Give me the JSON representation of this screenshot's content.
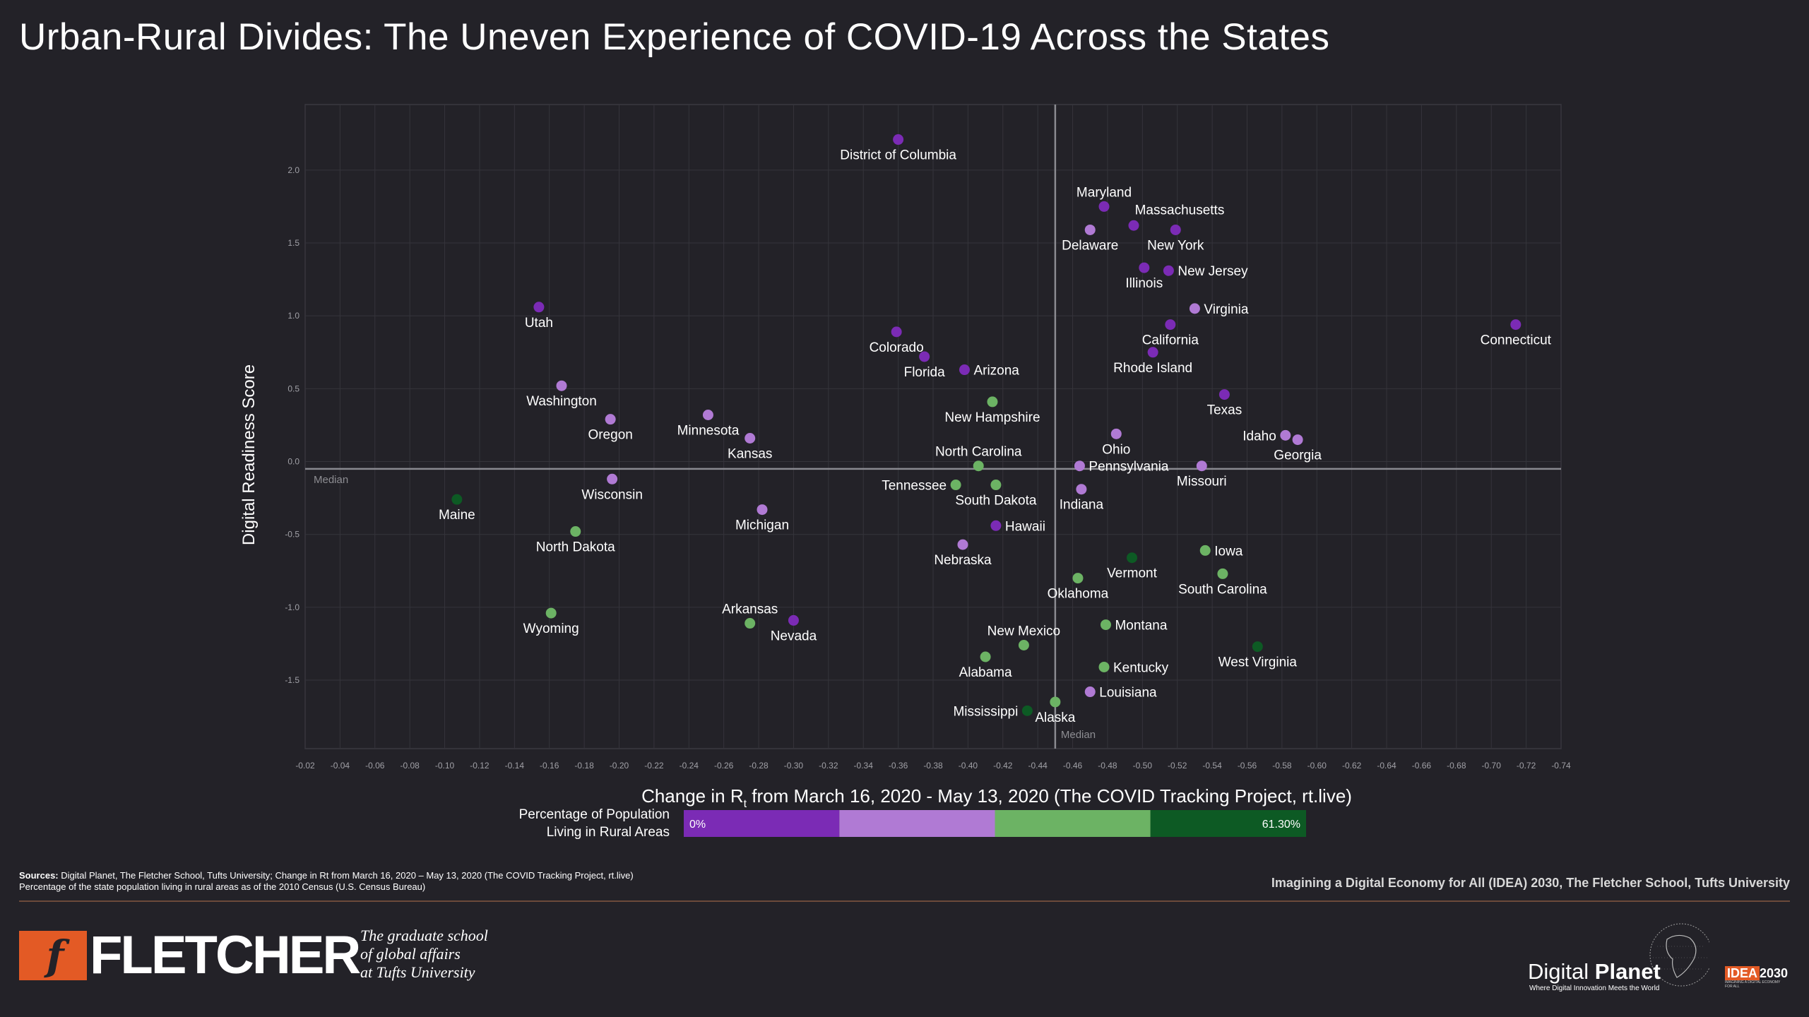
{
  "title": "Urban-Rural Divides: The Uneven Experience of COVID-19 Across the States",
  "colors": {
    "background": "#232228",
    "bin_0": "#7b2bb5",
    "bin_1": "#b07ad4",
    "bin_2": "#6cb364",
    "bin_3": "#0d5a24"
  },
  "chart_data": {
    "type": "scatter",
    "xlabel": "Change in Rt from March 16, 2020 - May 13, 2020 (The COVID Tracking Project, rt.live)",
    "xlabel_parts": {
      "pre": "Change in R",
      "sub": "t",
      "post": " from March 16, 2020 - May 13, 2020 (The COVID Tracking Project, rt.live)"
    },
    "ylabel": "Digital Readiness Score",
    "xlim": [
      -0.02,
      -0.74
    ],
    "ylim": [
      -1.97,
      2.45
    ],
    "x_ticks": [
      "-0.02",
      "-0.04",
      "-0.06",
      "-0.08",
      "-0.10",
      "-0.12",
      "-0.14",
      "-0.16",
      "-0.18",
      "-0.20",
      "-0.22",
      "-0.24",
      "-0.26",
      "-0.28",
      "-0.30",
      "-0.32",
      "-0.34",
      "-0.36",
      "-0.38",
      "-0.40",
      "-0.42",
      "-0.44",
      "-0.46",
      "-0.48",
      "-0.50",
      "-0.52",
      "-0.54",
      "-0.56",
      "-0.58",
      "-0.60",
      "-0.62",
      "-0.64",
      "-0.66",
      "-0.68",
      "-0.70",
      "-0.72",
      "-0.74"
    ],
    "y_ticks": [
      "2.0",
      "1.5",
      "1.0",
      "0.5",
      "0.0",
      "-0.5",
      "-1.0",
      "-1.5"
    ],
    "grid": true,
    "median_x": -0.45,
    "median_y": -0.05,
    "median_label": "Median",
    "legend": {
      "label_line1": "Percentage of Population",
      "label_line2": "Living in Rural Areas",
      "min_label": "0%",
      "max_label": "61.30%"
    },
    "points": [
      {
        "name": "District of Columbia",
        "x": -0.36,
        "y": 2.21,
        "bin": 0,
        "label_pos": "below"
      },
      {
        "name": "Maryland",
        "x": -0.478,
        "y": 1.75,
        "bin": 0,
        "label_pos": "above"
      },
      {
        "name": "Massachusetts",
        "x": -0.495,
        "y": 1.62,
        "bin": 0,
        "label_pos": "above-right"
      },
      {
        "name": "Delaware",
        "x": -0.47,
        "y": 1.59,
        "bin": 1,
        "label_pos": "below"
      },
      {
        "name": "New York",
        "x": -0.519,
        "y": 1.59,
        "bin": 0,
        "label_pos": "below"
      },
      {
        "name": "Illinois",
        "x": -0.501,
        "y": 1.33,
        "bin": 0,
        "label_pos": "below"
      },
      {
        "name": "New Jersey",
        "x": -0.515,
        "y": 1.31,
        "bin": 0,
        "label_pos": "right"
      },
      {
        "name": "Virginia",
        "x": -0.53,
        "y": 1.05,
        "bin": 1,
        "label_pos": "right"
      },
      {
        "name": "California",
        "x": -0.516,
        "y": 0.94,
        "bin": 0,
        "label_pos": "below"
      },
      {
        "name": "Connecticut",
        "x": -0.714,
        "y": 0.94,
        "bin": 0,
        "label_pos": "below"
      },
      {
        "name": "Utah",
        "x": -0.154,
        "y": 1.06,
        "bin": 0,
        "label_pos": "below"
      },
      {
        "name": "Colorado",
        "x": -0.359,
        "y": 0.89,
        "bin": 0,
        "label_pos": "below"
      },
      {
        "name": "Florida",
        "x": -0.375,
        "y": 0.72,
        "bin": 0,
        "label_pos": "below"
      },
      {
        "name": "Arizona",
        "x": -0.398,
        "y": 0.63,
        "bin": 0,
        "label_pos": "right"
      },
      {
        "name": "Rhode Island",
        "x": -0.506,
        "y": 0.75,
        "bin": 0,
        "label_pos": "below"
      },
      {
        "name": "Texas",
        "x": -0.547,
        "y": 0.46,
        "bin": 0,
        "label_pos": "below"
      },
      {
        "name": "Washington",
        "x": -0.167,
        "y": 0.52,
        "bin": 1,
        "label_pos": "below"
      },
      {
        "name": "Oregon",
        "x": -0.195,
        "y": 0.29,
        "bin": 1,
        "label_pos": "below"
      },
      {
        "name": "Minnesota",
        "x": -0.251,
        "y": 0.32,
        "bin": 1,
        "label_pos": "below"
      },
      {
        "name": "Kansas",
        "x": -0.275,
        "y": 0.16,
        "bin": 1,
        "label_pos": "below"
      },
      {
        "name": "New Hampshire",
        "x": -0.414,
        "y": 0.41,
        "bin": 2,
        "label_pos": "below"
      },
      {
        "name": "Ohio",
        "x": -0.485,
        "y": 0.19,
        "bin": 1,
        "label_pos": "below"
      },
      {
        "name": "Idaho",
        "x": -0.582,
        "y": 0.18,
        "bin": 1,
        "label_pos": "left"
      },
      {
        "name": "Georgia",
        "x": -0.589,
        "y": 0.15,
        "bin": 1,
        "label_pos": "below"
      },
      {
        "name": "North Carolina",
        "x": -0.406,
        "y": -0.03,
        "bin": 2,
        "label_pos": "above"
      },
      {
        "name": "Pennsylvania",
        "x": -0.464,
        "y": -0.03,
        "bin": 1,
        "label_pos": "right"
      },
      {
        "name": "Missouri",
        "x": -0.534,
        "y": -0.03,
        "bin": 1,
        "label_pos": "below"
      },
      {
        "name": "Tennessee",
        "x": -0.393,
        "y": -0.16,
        "bin": 2,
        "label_pos": "left"
      },
      {
        "name": "South Dakota",
        "x": -0.416,
        "y": -0.16,
        "bin": 2,
        "label_pos": "below"
      },
      {
        "name": "Indiana",
        "x": -0.465,
        "y": -0.19,
        "bin": 1,
        "label_pos": "below"
      },
      {
        "name": "Wisconsin",
        "x": -0.196,
        "y": -0.12,
        "bin": 1,
        "label_pos": "below"
      },
      {
        "name": "Maine",
        "x": -0.107,
        "y": -0.26,
        "bin": 3,
        "label_pos": "below"
      },
      {
        "name": "Michigan",
        "x": -0.282,
        "y": -0.33,
        "bin": 1,
        "label_pos": "below"
      },
      {
        "name": "Hawaii",
        "x": -0.416,
        "y": -0.44,
        "bin": 0,
        "label_pos": "right"
      },
      {
        "name": "North Dakota",
        "x": -0.175,
        "y": -0.48,
        "bin": 2,
        "label_pos": "below"
      },
      {
        "name": "Nebraska",
        "x": -0.397,
        "y": -0.57,
        "bin": 1,
        "label_pos": "below"
      },
      {
        "name": "Iowa",
        "x": -0.536,
        "y": -0.61,
        "bin": 2,
        "label_pos": "right"
      },
      {
        "name": "Vermont",
        "x": -0.494,
        "y": -0.66,
        "bin": 3,
        "label_pos": "below"
      },
      {
        "name": "South Carolina",
        "x": -0.546,
        "y": -0.77,
        "bin": 2,
        "label_pos": "below"
      },
      {
        "name": "Oklahoma",
        "x": -0.463,
        "y": -0.8,
        "bin": 2,
        "label_pos": "below"
      },
      {
        "name": "Wyoming",
        "x": -0.161,
        "y": -1.04,
        "bin": 2,
        "label_pos": "below"
      },
      {
        "name": "Arkansas",
        "x": -0.275,
        "y": -1.11,
        "bin": 2,
        "label_pos": "above"
      },
      {
        "name": "Nevada",
        "x": -0.3,
        "y": -1.09,
        "bin": 0,
        "label_pos": "below"
      },
      {
        "name": "Montana",
        "x": -0.479,
        "y": -1.12,
        "bin": 2,
        "label_pos": "right"
      },
      {
        "name": "New Mexico",
        "x": -0.432,
        "y": -1.26,
        "bin": 2,
        "label_pos": "above"
      },
      {
        "name": "West Virginia",
        "x": -0.566,
        "y": -1.27,
        "bin": 3,
        "label_pos": "below"
      },
      {
        "name": "Alabama",
        "x": -0.41,
        "y": -1.34,
        "bin": 2,
        "label_pos": "below"
      },
      {
        "name": "Kentucky",
        "x": -0.478,
        "y": -1.41,
        "bin": 2,
        "label_pos": "right"
      },
      {
        "name": "Louisiana",
        "x": -0.47,
        "y": -1.58,
        "bin": 1,
        "label_pos": "right"
      },
      {
        "name": "Alaska",
        "x": -0.45,
        "y": -1.65,
        "bin": 2,
        "label_pos": "below"
      },
      {
        "name": "Mississippi",
        "x": -0.434,
        "y": -1.71,
        "bin": 3,
        "label_pos": "left"
      }
    ]
  },
  "sources": {
    "label": "Sources:",
    "line1": "Digital Planet, The Fletcher School, Tufts University; Change in Rt from March 16, 2020 –  May 13, 2020 (The COVID Tracking Project, rt.live)",
    "line2": "Percentage of the state population living in rural areas as of the 2010 Census (U.S. Census Bureau)"
  },
  "credit": "Imagining a Digital Economy for All (IDEA) 2030, The Fletcher School, Tufts University",
  "fletcher": {
    "mark": "f",
    "word": "FLETCHER",
    "tagline1": "The graduate school",
    "tagline2": "of global affairs",
    "tagline3": "at Tufts University"
  },
  "digital_planet": {
    "word_light": "Digital",
    "word_bold": "Planet",
    "sub": "Where Digital Innovation Meets the World"
  },
  "idea": {
    "badge": "IDEA",
    "year": "2030",
    "sub": "IMAGINING A DIGITAL ECONOMY FOR ALL"
  }
}
